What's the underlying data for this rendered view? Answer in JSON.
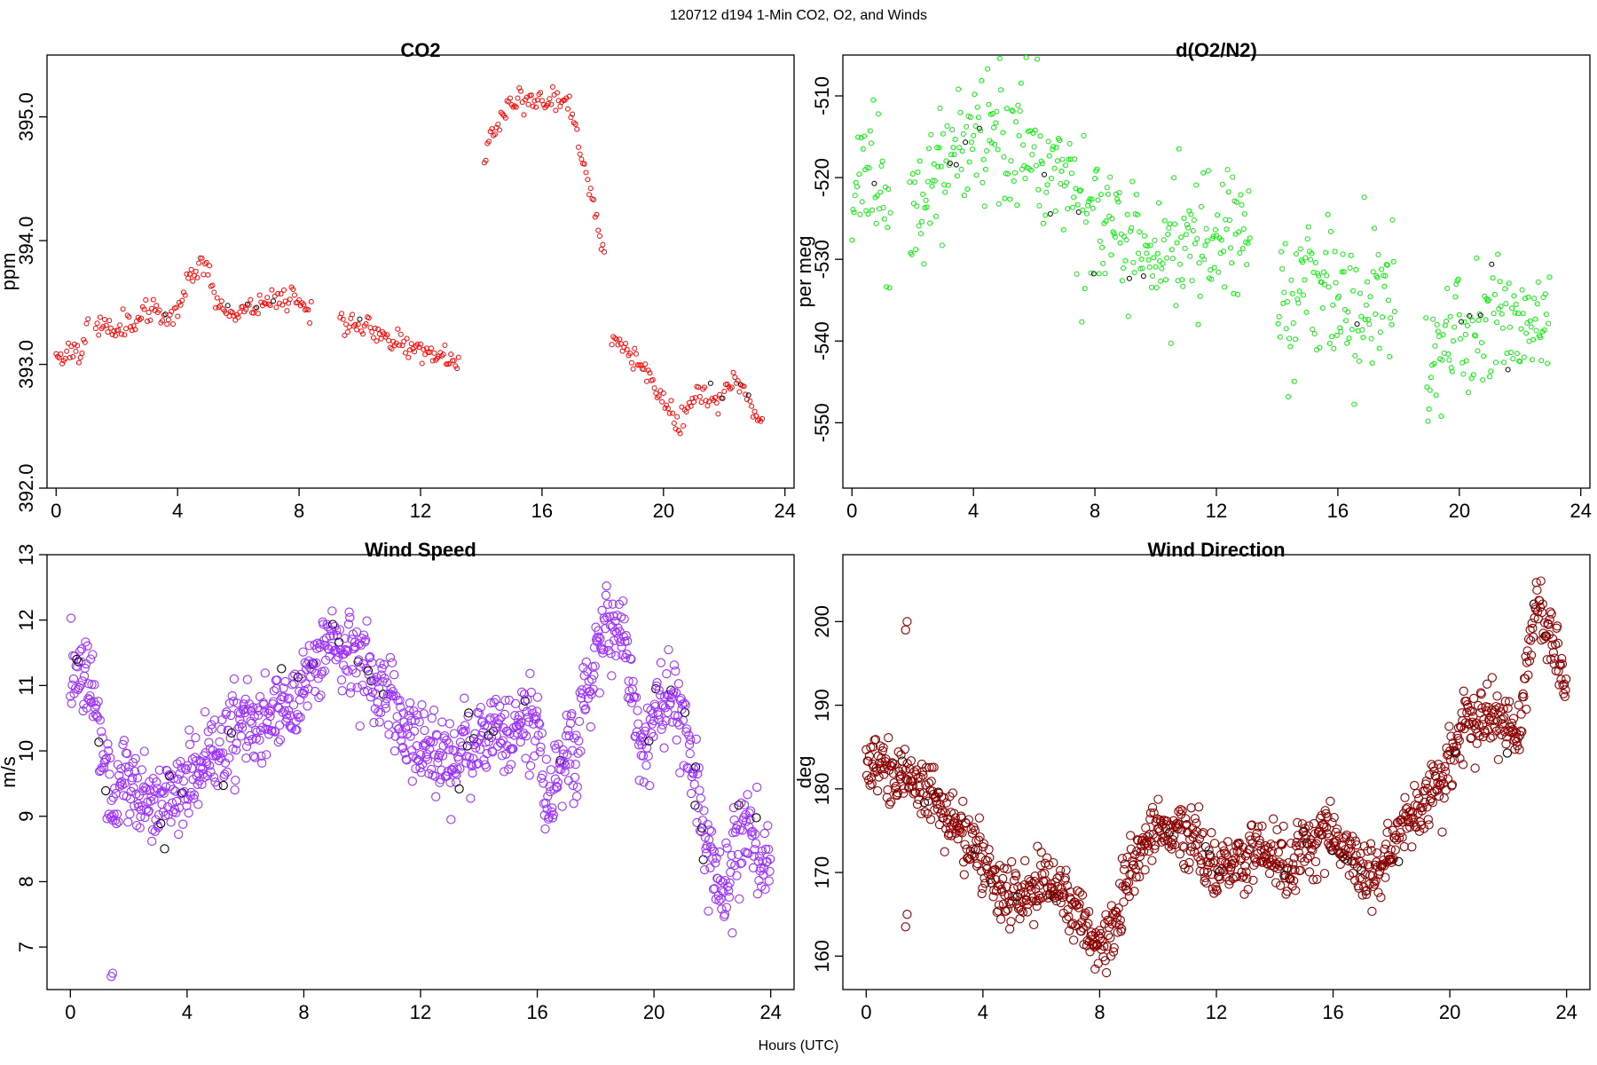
{
  "figure": {
    "title": "120712   d194   1-Min CO2, O2, and Winds",
    "xlabel": "Hours (UTC)"
  },
  "chart_data": [
    {
      "id": "co2",
      "type": "scatter",
      "title": "CO2",
      "ylabel": "ppm",
      "xlabel": "",
      "color": "#ff0000",
      "marker": "small-open-circle",
      "xlim": [
        -0.3,
        24.3
      ],
      "ylim": [
        392.0,
        395.5
      ],
      "xticks": [
        0,
        4,
        8,
        12,
        16,
        20,
        24
      ],
      "yticks": [
        392.0,
        393.0,
        394.0,
        395.0
      ],
      "ytick_labels": [
        "392.0",
        "393.0",
        "394.0",
        "395.0"
      ],
      "keypoints": [
        [
          0.0,
          393.1
        ],
        [
          0.2,
          393.05
        ],
        [
          0.5,
          393.15
        ],
        [
          0.8,
          393.1
        ],
        [
          1.0,
          393.25
        ],
        [
          1.2,
          393.35
        ],
        [
          1.5,
          393.28
        ],
        [
          2.0,
          393.32
        ],
        [
          2.5,
          393.35
        ],
        [
          3.0,
          393.42
        ],
        [
          3.5,
          393.38
        ],
        [
          4.0,
          393.45
        ],
        [
          4.3,
          393.65
        ],
        [
          4.6,
          393.8
        ],
        [
          4.9,
          393.85
        ],
        [
          5.2,
          393.55
        ],
        [
          5.5,
          393.45
        ],
        [
          6.0,
          393.42
        ],
        [
          6.5,
          393.48
        ],
        [
          7.0,
          393.52
        ],
        [
          7.5,
          393.55
        ],
        [
          8.0,
          393.53
        ],
        [
          8.4,
          393.45
        ],
        [
          9.5,
          393.35
        ],
        [
          10.0,
          393.3
        ],
        [
          10.5,
          393.25
        ],
        [
          11.0,
          393.22
        ],
        [
          11.5,
          393.15
        ],
        [
          12.0,
          393.1
        ],
        [
          12.5,
          393.08
        ],
        [
          13.0,
          393.05
        ],
        [
          13.3,
          393.05
        ],
        [
          14.0,
          394.55
        ],
        [
          14.3,
          394.85
        ],
        [
          14.7,
          395.05
        ],
        [
          15.0,
          395.1
        ],
        [
          15.5,
          395.15
        ],
        [
          16.0,
          395.15
        ],
        [
          16.3,
          395.1
        ],
        [
          16.6,
          395.2
        ],
        [
          16.9,
          395.05
        ],
        [
          17.2,
          394.8
        ],
        [
          17.5,
          394.5
        ],
        [
          17.8,
          394.15
        ],
        [
          18.1,
          393.9
        ],
        [
          18.3,
          393.25
        ],
        [
          19.0,
          393.05
        ],
        [
          19.4,
          392.95
        ],
        [
          19.8,
          392.8
        ],
        [
          20.0,
          392.7
        ],
        [
          20.3,
          392.6
        ],
        [
          20.5,
          392.45
        ],
        [
          20.8,
          392.68
        ],
        [
          21.2,
          392.75
        ],
        [
          21.6,
          392.72
        ],
        [
          22.0,
          392.78
        ],
        [
          22.3,
          392.9
        ],
        [
          22.6,
          392.85
        ],
        [
          23.0,
          392.6
        ],
        [
          23.3,
          392.55
        ]
      ],
      "gaps": [
        [
          1.1,
          1.3
        ],
        [
          8.4,
          9.3
        ],
        [
          13.3,
          14.1
        ],
        [
          18.1,
          18.3
        ]
      ],
      "noise": 0.05,
      "step_minutes": 3,
      "seed": 11
    },
    {
      "id": "o2",
      "type": "scatter",
      "title": "d(O2/N2)",
      "ylabel": "per meg",
      "xlabel": "",
      "color": "#00ee00",
      "marker": "small-open-circle",
      "xlim": [
        -0.3,
        24.3
      ],
      "ylim": [
        -558,
        -505
      ],
      "xticks": [
        0,
        4,
        8,
        12,
        16,
        20,
        24
      ],
      "yticks": [
        -550,
        -540,
        -530,
        -520,
        -510
      ],
      "ytick_labels": [
        "-550",
        "-540",
        "-530",
        "-520",
        "-510"
      ],
      "keypoints": [
        [
          0.0,
          -523
        ],
        [
          0.5,
          -520
        ],
        [
          1.0,
          -522
        ],
        [
          1.2,
          -523
        ],
        [
          2.0,
          -524
        ],
        [
          2.5,
          -523
        ],
        [
          3.0,
          -520
        ],
        [
          3.5,
          -518
        ],
        [
          4.0,
          -515
        ],
        [
          4.5,
          -512
        ],
        [
          5.0,
          -513
        ],
        [
          5.5,
          -515
        ],
        [
          6.0,
          -516
        ],
        [
          6.5,
          -518
        ],
        [
          7.0,
          -519
        ],
        [
          7.5,
          -522
        ],
        [
          8.0,
          -525
        ],
        [
          8.5,
          -527
        ],
        [
          9.0,
          -530
        ],
        [
          9.5,
          -531
        ],
        [
          10.0,
          -530
        ],
        [
          10.5,
          -529
        ],
        [
          11.0,
          -528
        ],
        [
          11.5,
          -526
        ],
        [
          12.0,
          -527
        ],
        [
          12.5,
          -525
        ],
        [
          13.0,
          -525
        ],
        [
          14.0,
          -533
        ],
        [
          14.5,
          -535
        ],
        [
          15.0,
          -534
        ],
        [
          15.5,
          -533
        ],
        [
          16.0,
          -535
        ],
        [
          16.5,
          -536
        ],
        [
          17.0,
          -537
        ],
        [
          17.5,
          -534
        ],
        [
          18.0,
          -533
        ],
        [
          19.0,
          -542
        ],
        [
          19.5,
          -540
        ],
        [
          20.0,
          -538
        ],
        [
          20.5,
          -540
        ],
        [
          21.0,
          -537
        ],
        [
          21.5,
          -539
        ],
        [
          22.0,
          -540
        ],
        [
          22.5,
          -538
        ],
        [
          23.0,
          -536
        ]
      ],
      "gaps": [
        [
          1.3,
          1.9
        ],
        [
          13.1,
          14.0
        ],
        [
          17.9,
          18.9
        ]
      ],
      "noise": 4.2,
      "step_minutes": 2,
      "seed": 23
    },
    {
      "id": "ws",
      "type": "scatter",
      "title": "Wind Speed",
      "ylabel": "m/s",
      "xlabel": "",
      "color": "#9b30ff",
      "marker": "open-circle",
      "xlim": [
        -0.8,
        24.8
      ],
      "ylim": [
        6.35,
        13.0
      ],
      "xticks": [
        0,
        4,
        8,
        12,
        16,
        20,
        24
      ],
      "yticks": [
        7,
        8,
        9,
        10,
        11,
        12,
        13
      ],
      "ytick_labels": [
        "7",
        "8",
        "9",
        "10",
        "11",
        "12",
        "13"
      ],
      "keypoints": [
        [
          0.0,
          11.2
        ],
        [
          0.3,
          11.4
        ],
        [
          0.6,
          11.2
        ],
        [
          0.9,
          10.8
        ],
        [
          1.1,
          9.8
        ],
        [
          1.4,
          9.3
        ],
        [
          1.8,
          9.5
        ],
        [
          2.2,
          9.4
        ],
        [
          2.6,
          9.3
        ],
        [
          3.0,
          9.1
        ],
        [
          3.5,
          9.3
        ],
        [
          4.0,
          9.5
        ],
        [
          4.5,
          9.7
        ],
        [
          5.0,
          9.9
        ],
        [
          5.5,
          10.4
        ],
        [
          6.0,
          10.5
        ],
        [
          6.5,
          10.3
        ],
        [
          7.0,
          10.7
        ],
        [
          7.5,
          10.6
        ],
        [
          8.0,
          11.2
        ],
        [
          8.5,
          11.4
        ],
        [
          9.0,
          11.6
        ],
        [
          9.5,
          11.6
        ],
        [
          10.0,
          11.3
        ],
        [
          10.5,
          11.1
        ],
        [
          11.0,
          10.9
        ],
        [
          11.5,
          10.3
        ],
        [
          12.0,
          10.1
        ],
        [
          12.5,
          10.0
        ],
        [
          13.0,
          9.9
        ],
        [
          13.5,
          10.1
        ],
        [
          14.0,
          10.1
        ],
        [
          14.5,
          10.4
        ],
        [
          15.0,
          10.2
        ],
        [
          15.5,
          10.5
        ],
        [
          16.0,
          10.4
        ],
        [
          16.3,
          9.3
        ],
        [
          16.6,
          9.4
        ],
        [
          17.0,
          10.0
        ],
        [
          17.3,
          9.8
        ],
        [
          17.7,
          11.0
        ],
        [
          18.0,
          11.5
        ],
        [
          18.4,
          12.0
        ],
        [
          18.8,
          11.9
        ],
        [
          19.2,
          11.2
        ],
        [
          19.5,
          10.2
        ],
        [
          19.8,
          10.2
        ],
        [
          20.0,
          10.6
        ],
        [
          20.4,
          10.8
        ],
        [
          20.8,
          10.6
        ],
        [
          21.2,
          10.0
        ],
        [
          21.6,
          9.0
        ],
        [
          22.0,
          8.3
        ],
        [
          22.4,
          7.7
        ],
        [
          22.8,
          8.3
        ],
        [
          23.2,
          8.9
        ],
        [
          23.6,
          8.5
        ],
        [
          24.0,
          8.3
        ]
      ],
      "outliers": [
        [
          1.4,
          6.55
        ],
        [
          1.45,
          6.6
        ]
      ],
      "gaps": [],
      "noise": 0.33,
      "step_minutes": 1.3,
      "seed": 37
    },
    {
      "id": "wd",
      "type": "scatter",
      "title": "Wind Direction",
      "ylabel": "deg",
      "xlabel": "",
      "color": "#8b0000",
      "marker": "open-circle",
      "xlim": [
        -0.8,
        24.8
      ],
      "ylim": [
        156,
        208
      ],
      "xticks": [
        0,
        4,
        8,
        12,
        16,
        20,
        24
      ],
      "yticks": [
        160,
        170,
        180,
        190,
        200
      ],
      "ytick_labels": [
        "160",
        "170",
        "180",
        "190",
        "200"
      ],
      "keypoints": [
        [
          0.0,
          182
        ],
        [
          0.5,
          184
        ],
        [
          1.0,
          181
        ],
        [
          1.5,
          181
        ],
        [
          2.0,
          180
        ],
        [
          2.5,
          178
        ],
        [
          3.0,
          176
        ],
        [
          3.5,
          174
        ],
        [
          4.0,
          172
        ],
        [
          4.5,
          168
        ],
        [
          5.0,
          167
        ],
        [
          5.5,
          167
        ],
        [
          6.0,
          169
        ],
        [
          6.5,
          168
        ],
        [
          7.0,
          166
        ],
        [
          7.5,
          164
        ],
        [
          8.0,
          161
        ],
        [
          8.5,
          164
        ],
        [
          9.0,
          170
        ],
        [
          9.5,
          173
        ],
        [
          10.0,
          176
        ],
        [
          10.5,
          175
        ],
        [
          11.0,
          175
        ],
        [
          11.5,
          172
        ],
        [
          12.0,
          170
        ],
        [
          12.5,
          171
        ],
        [
          13.0,
          171
        ],
        [
          13.5,
          173
        ],
        [
          14.0,
          172
        ],
        [
          14.5,
          170
        ],
        [
          15.0,
          173
        ],
        [
          15.5,
          174
        ],
        [
          16.0,
          175
        ],
        [
          16.5,
          172
        ],
        [
          17.0,
          169
        ],
        [
          17.5,
          170
        ],
        [
          18.0,
          173
        ],
        [
          18.5,
          176
        ],
        [
          19.0,
          178
        ],
        [
          19.5,
          180
        ],
        [
          20.0,
          183
        ],
        [
          20.5,
          188
        ],
        [
          21.0,
          189
        ],
        [
          21.5,
          189
        ],
        [
          22.0,
          187
        ],
        [
          22.4,
          186
        ],
        [
          22.7,
          196
        ],
        [
          23.0,
          203
        ],
        [
          23.3,
          200
        ],
        [
          23.6,
          196
        ],
        [
          24.0,
          193
        ]
      ],
      "outliers": [
        [
          1.35,
          199
        ],
        [
          1.4,
          200
        ],
        [
          1.35,
          163.5
        ],
        [
          1.4,
          165
        ]
      ],
      "gaps": [],
      "noise": 1.9,
      "step_minutes": 1.3,
      "seed": 53
    }
  ]
}
